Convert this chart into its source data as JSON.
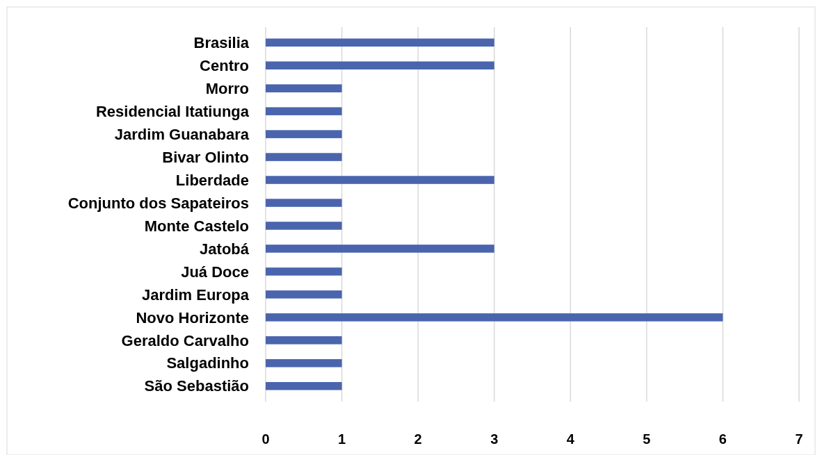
{
  "chart_data": {
    "type": "bar",
    "orientation": "horizontal",
    "categories": [
      "Brasilia",
      "Centro",
      "Morro",
      "Residencial Itatiunga",
      "Jardim Guanabara",
      "Bivar Olinto",
      "Liberdade",
      "Conjunto dos Sapateiros",
      "Monte Castelo",
      "Jatobá",
      "Juá Doce",
      "Jardim Europa",
      "Novo Horizonte",
      "Geraldo Carvalho",
      "Salgadinho",
      "São Sebastião"
    ],
    "values": [
      3,
      3,
      1,
      1,
      1,
      1,
      3,
      1,
      1,
      3,
      1,
      1,
      6,
      1,
      1,
      1
    ],
    "color": "#4a65ad",
    "xlim": [
      0,
      7
    ],
    "xticks": [
      0,
      1,
      2,
      3,
      4,
      5,
      6,
      7
    ],
    "grid": "x"
  }
}
